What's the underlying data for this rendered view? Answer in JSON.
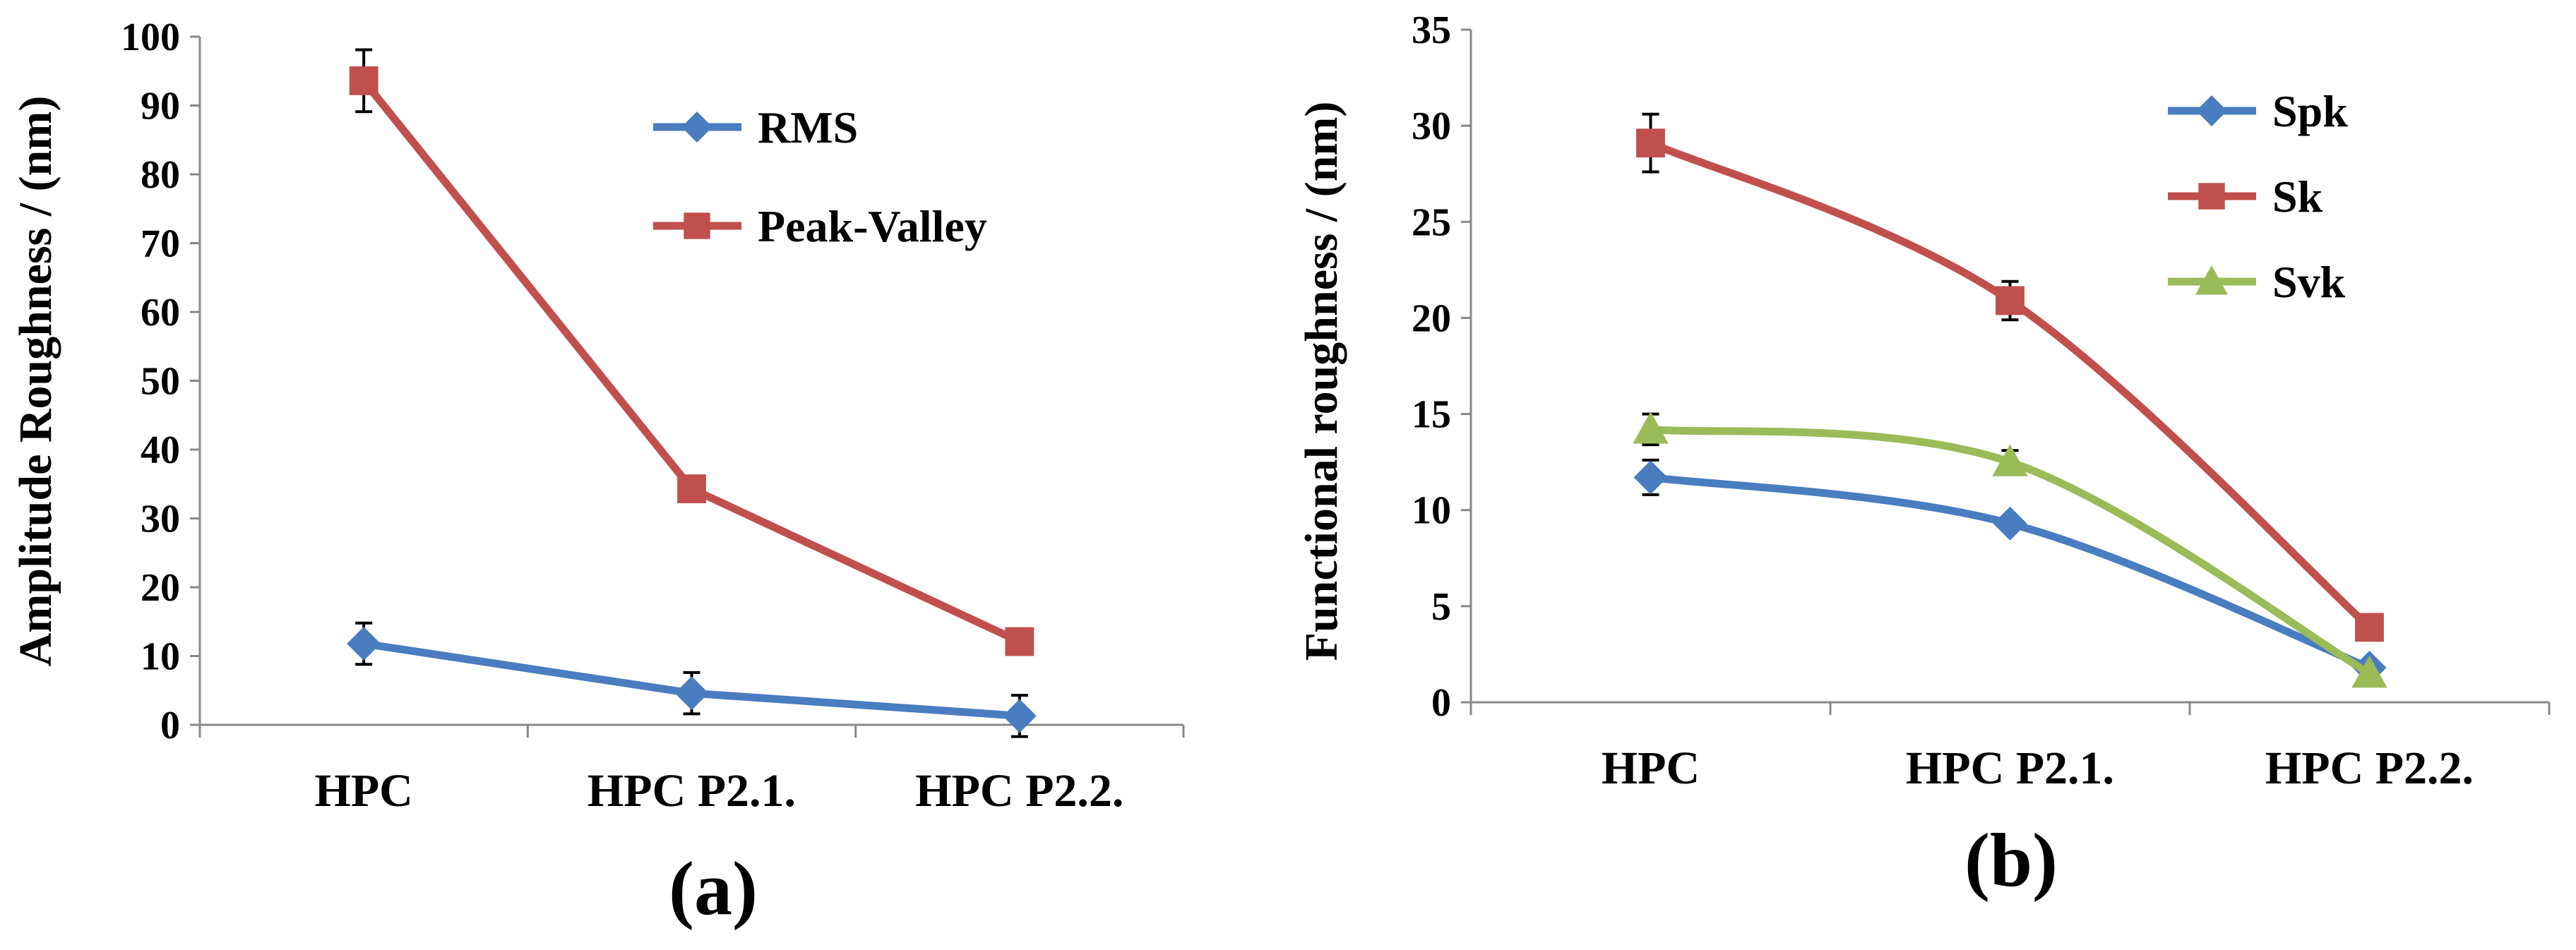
{
  "chart_data": [
    {
      "panel_label": "(a)",
      "type": "line",
      "smooth": false,
      "categories": [
        "HPC",
        "HPC P2.1.",
        "HPC P2.2."
      ],
      "ylabel": "Amplitude Roughness / (nm)",
      "ylim": [
        0,
        100
      ],
      "yticks": [
        0,
        10,
        20,
        30,
        40,
        50,
        60,
        70,
        80,
        90,
        100
      ],
      "gridlines": false,
      "legend": "top-right",
      "series": [
        {
          "name": "RMS",
          "marker": "diamond",
          "color": "#4a7dbf",
          "values": [
            11.8,
            4.6,
            1.3
          ],
          "errors": [
            3.0,
            3.0,
            3.0
          ]
        },
        {
          "name": "Peak-Valley",
          "marker": "square",
          "color": "#c0504d",
          "values": [
            93.6,
            34.3,
            12.1
          ],
          "errors": [
            4.5,
            0,
            0
          ]
        }
      ]
    },
    {
      "panel_label": "(b)",
      "type": "line",
      "smooth": true,
      "categories": [
        "HPC",
        "HPC P2.1.",
        "HPC P2.2."
      ],
      "ylabel": "Functional roughness / (nm)",
      "ylim": [
        0,
        35
      ],
      "yticks": [
        0,
        5,
        10,
        15,
        20,
        25,
        30,
        35
      ],
      "gridlines": false,
      "legend": "top-right",
      "series": [
        {
          "name": "Spk",
          "marker": "diamond",
          "color": "#4a7dbf",
          "values": [
            11.7,
            9.3,
            1.8
          ],
          "errors": [
            0.9,
            0,
            0
          ]
        },
        {
          "name": "Sk",
          "marker": "square",
          "color": "#c0504d",
          "values": [
            29.1,
            20.9,
            3.9
          ],
          "errors": [
            1.5,
            1.0,
            0
          ]
        },
        {
          "name": "Svk",
          "marker": "triangle",
          "color": "#9bbb59",
          "values": [
            14.2,
            12.5,
            1.5
          ],
          "errors": [
            0.8,
            0.6,
            0
          ]
        }
      ]
    }
  ]
}
